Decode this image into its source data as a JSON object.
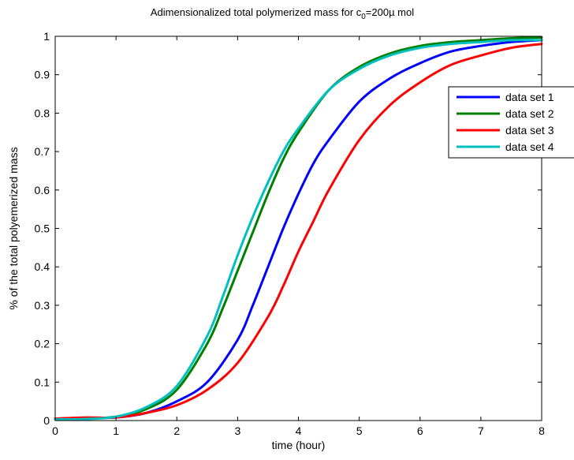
{
  "chart_data": {
    "type": "line",
    "title": {
      "main": "Adimensionalized total polymerized mass for c",
      "sub": "0",
      "rest": "=200µ mol"
    },
    "xlabel": "time (hour)",
    "ylabel": "% of the total polyemerized mass",
    "xlim": [
      0,
      8
    ],
    "ylim": [
      0,
      1
    ],
    "xticks": [
      0,
      1,
      2,
      3,
      4,
      5,
      6,
      7,
      8
    ],
    "yticks": [
      0,
      0.1,
      0.2,
      0.3,
      0.4,
      0.5,
      0.6,
      0.7,
      0.8,
      0.9,
      1
    ],
    "grid": false,
    "legend_position": "top-right",
    "series": [
      {
        "name": "data set 1",
        "color": "#0000ff",
        "x": [
          0,
          0.5,
          1.0,
          1.5,
          2.0,
          2.5,
          3.0,
          3.25,
          3.5,
          3.75,
          4.0,
          4.25,
          4.5,
          5.0,
          5.5,
          6.0,
          6.5,
          7.0,
          7.5,
          8.0
        ],
        "values": [
          0.005,
          0.007,
          0.008,
          0.02,
          0.05,
          0.1,
          0.21,
          0.3,
          0.4,
          0.5,
          0.59,
          0.67,
          0.73,
          0.83,
          0.89,
          0.93,
          0.96,
          0.975,
          0.985,
          0.99
        ]
      },
      {
        "name": "data set 2",
        "color": "#008000",
        "x": [
          0,
          0.5,
          1.0,
          1.5,
          2.0,
          2.5,
          2.75,
          3.0,
          3.25,
          3.5,
          3.75,
          4.0,
          4.5,
          5.0,
          5.5,
          6.0,
          6.5,
          7.0,
          7.5,
          8.0
        ],
        "values": [
          0.004,
          0.005,
          0.01,
          0.03,
          0.08,
          0.2,
          0.29,
          0.39,
          0.49,
          0.59,
          0.68,
          0.75,
          0.86,
          0.92,
          0.955,
          0.975,
          0.985,
          0.99,
          0.995,
          0.997
        ]
      },
      {
        "name": "data set 3",
        "color": "#ff0000",
        "x": [
          0,
          0.5,
          1.0,
          1.5,
          2.0,
          2.5,
          3.0,
          3.5,
          3.75,
          4.0,
          4.25,
          4.5,
          5.0,
          5.5,
          6.0,
          6.5,
          7.0,
          7.5,
          8.0
        ],
        "values": [
          0.005,
          0.008,
          0.008,
          0.02,
          0.04,
          0.08,
          0.15,
          0.27,
          0.35,
          0.44,
          0.52,
          0.6,
          0.73,
          0.82,
          0.88,
          0.925,
          0.95,
          0.97,
          0.98
        ]
      },
      {
        "name": "data set 4",
        "color": "#00bfbf",
        "x": [
          0,
          0.5,
          1.0,
          1.5,
          2.0,
          2.5,
          2.75,
          3.0,
          3.25,
          3.5,
          3.75,
          4.0,
          4.5,
          5.0,
          5.5,
          6.0,
          6.5,
          7.0,
          7.5,
          8.0
        ],
        "values": [
          0.003,
          0.004,
          0.01,
          0.035,
          0.09,
          0.22,
          0.32,
          0.43,
          0.53,
          0.62,
          0.7,
          0.76,
          0.86,
          0.915,
          0.95,
          0.97,
          0.98,
          0.985,
          0.99,
          0.99
        ]
      }
    ]
  }
}
